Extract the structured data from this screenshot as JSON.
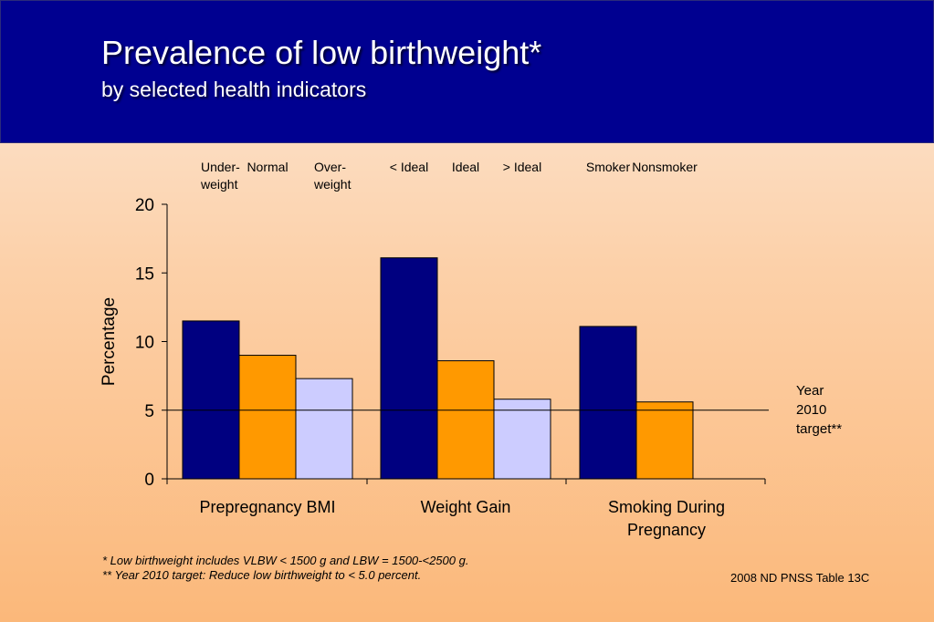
{
  "header": {
    "title": "Prevalence of low birthweight*",
    "subtitle": "by selected health indicators"
  },
  "footnotes": {
    "note1": "*    Low birthweight includes VLBW < 1500 g and LBW = 1500-<2500 g.",
    "note2": "**  Year 2010 target: Reduce low birthweight to < 5.0 percent.",
    "source": "2008 ND PNSS Table 13C"
  },
  "colors": {
    "dark_blue": "#000080",
    "orange": "#ff9900",
    "lavender": "#ccccff",
    "header_bg": "#000090"
  },
  "chart_data": {
    "type": "bar",
    "ylabel": "Percentage",
    "ylim": [
      0,
      20
    ],
    "yticks": [
      0,
      5,
      10,
      15,
      20
    ],
    "groups": [
      {
        "name": "Prepregnancy BMI",
        "label_lines": [
          "Prepregnancy BMI"
        ],
        "bars": [
          {
            "label_lines": [
              "Under-",
              "weight"
            ],
            "value": 11.5,
            "color": "#000080"
          },
          {
            "label_lines": [
              "Normal"
            ],
            "value": 9.0,
            "color": "#ff9900"
          },
          {
            "label_lines": [
              "Over-",
              "weight"
            ],
            "value": 7.3,
            "color": "#ccccff"
          }
        ]
      },
      {
        "name": "Weight Gain",
        "label_lines": [
          "Weight Gain"
        ],
        "bars": [
          {
            "label_lines": [
              "< Ideal"
            ],
            "value": 16.1,
            "color": "#000080"
          },
          {
            "label_lines": [
              "Ideal"
            ],
            "value": 8.6,
            "color": "#ff9900"
          },
          {
            "label_lines": [
              "> Ideal"
            ],
            "value": 5.8,
            "color": "#ccccff"
          }
        ]
      },
      {
        "name": "Smoking During Pregnancy",
        "label_lines": [
          "Smoking During",
          "Pregnancy"
        ],
        "bars": [
          {
            "label_lines": [
              "Smoker"
            ],
            "value": 11.1,
            "color": "#000080"
          },
          {
            "label_lines": [
              "Nonsmoker"
            ],
            "value": 5.6,
            "color": "#ff9900"
          }
        ]
      }
    ],
    "target": {
      "value": 5,
      "label_lines": [
        "Year",
        "2010",
        "target**"
      ]
    }
  }
}
